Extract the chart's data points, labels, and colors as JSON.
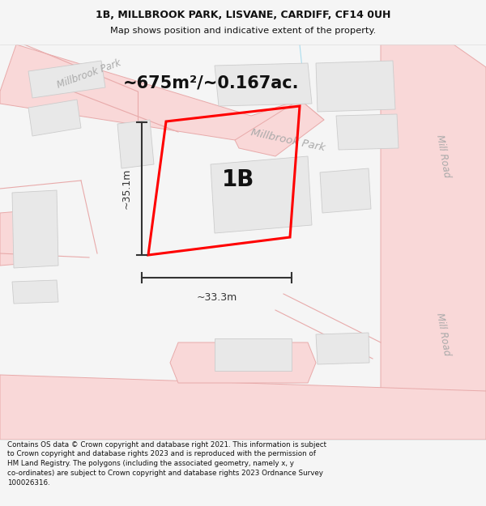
{
  "title_line1": "1B, MILLBROOK PARK, LISVANE, CARDIFF, CF14 0UH",
  "title_line2": "Map shows position and indicative extent of the property.",
  "area_text": "~675m²/~0.167ac.",
  "label_1b": "1B",
  "dim_width": "~33.3m",
  "dim_height": "~35.1m",
  "footer_text": "Contains OS data © Crown copyright and database right 2021. This information is subject to Crown copyright and database rights 2023 and is reproduced with the permission of HM Land Registry. The polygons (including the associated geometry, namely x, y co-ordinates) are subject to Crown copyright and database rights 2023 Ordnance Survey 100026316.",
  "bg_color": "#f5f5f5",
  "map_bg": "#ffffff",
  "road_fill": "#f9d8d8",
  "road_edge": "#e8aaaa",
  "building_fill": "#e8e8e8",
  "building_edge": "#cccccc",
  "plot_edge": "#ff0000",
  "street_color": "#aaaaaa",
  "dim_color": "#333333",
  "title_color": "#111111",
  "footer_color": "#111111",
  "road_label_millbrook": "Millbrook Park",
  "road_label_mill1": "Mill Road",
  "road_label_mill2": "Mill Road",
  "top_left_label": "Millbrook Park"
}
